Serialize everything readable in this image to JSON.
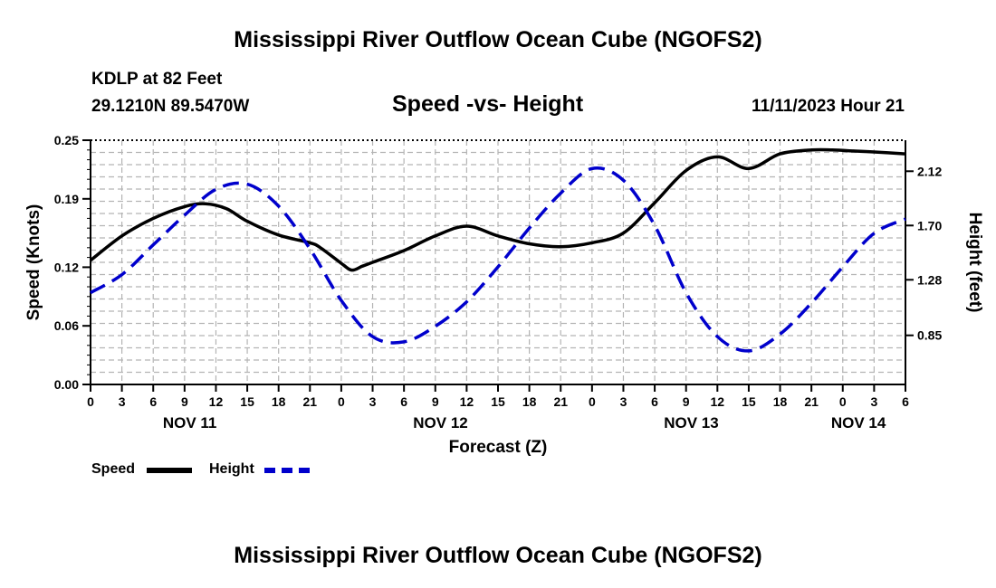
{
  "header": {
    "title": "Mississippi River Outflow Ocean Cube (NGOFS2)",
    "station": "KDLP at 82 Feet",
    "coords": "29.1210N  89.5470W",
    "subtitle": "Speed -vs- Height",
    "date": "11/11/2023 Hour 21"
  },
  "footer": {
    "title": "Mississippi River Outflow Ocean Cube (NGOFS2)"
  },
  "legend": {
    "speed_label": "Speed",
    "height_label": "Height"
  },
  "colors": {
    "speed": "#000000",
    "height": "#0000cc",
    "grid": "#b4b4b4"
  },
  "chart_data": {
    "type": "line",
    "title": "Speed -vs- Height",
    "xlabel": "Forecast (Z)",
    "ylabel": "Speed (Knots)",
    "y2label": "Height (feet)",
    "xlim": [
      0,
      78
    ],
    "ylim": [
      0,
      0.25
    ],
    "y2lim": [
      0.47,
      2.36
    ],
    "x_ticks": [
      0,
      3,
      6,
      9,
      12,
      15,
      18,
      21,
      24,
      27,
      30,
      33,
      36,
      39,
      42,
      45,
      48,
      51,
      54,
      57,
      60,
      63,
      66,
      69,
      72,
      75,
      78
    ],
    "x_tick_labels": [
      "0",
      "3",
      "6",
      "9",
      "12",
      "15",
      "18",
      "21",
      "0",
      "3",
      "6",
      "9",
      "12",
      "15",
      "18",
      "21",
      "0",
      "3",
      "6",
      "9",
      "12",
      "15",
      "18",
      "21",
      "0",
      "3",
      "6"
    ],
    "day_labels": [
      {
        "x": 9.5,
        "label": "NOV 11"
      },
      {
        "x": 33.5,
        "label": "NOV 12"
      },
      {
        "x": 57.5,
        "label": "NOV 13"
      },
      {
        "x": 73.5,
        "label": "NOV 14"
      }
    ],
    "y_ticks": [
      0,
      0.06,
      0.12,
      0.19,
      0.25
    ],
    "y_tick_labels": [
      "0.00",
      "0.06",
      "0.12",
      "0.19",
      "0.25"
    ],
    "y2_ticks": [
      0.85,
      1.28,
      1.7,
      2.12
    ],
    "y2_tick_labels": [
      "0.85",
      "1.28",
      "1.70",
      "2.12"
    ],
    "grid": true,
    "series": [
      {
        "name": "Speed",
        "axis": "left",
        "style": "solid",
        "x": [
          0,
          3,
          6,
          9,
          11,
          13,
          15,
          18,
          21,
          22,
          24,
          25,
          26,
          27,
          30,
          33,
          36,
          39,
          42,
          45,
          48,
          51,
          54,
          57,
          60,
          63,
          66,
          69,
          71,
          73,
          75,
          78
        ],
        "y": [
          0.127,
          0.152,
          0.17,
          0.182,
          0.185,
          0.18,
          0.167,
          0.153,
          0.145,
          0.14,
          0.124,
          0.117,
          0.121,
          0.125,
          0.137,
          0.152,
          0.162,
          0.152,
          0.144,
          0.141,
          0.145,
          0.155,
          0.186,
          0.219,
          0.233,
          0.221,
          0.236,
          0.24,
          0.24,
          0.239,
          0.238,
          0.236
        ]
      },
      {
        "name": "Height",
        "axis": "right",
        "style": "dashed",
        "x": [
          0,
          3,
          6,
          9,
          12,
          15,
          18,
          21,
          24,
          27,
          30,
          33,
          36,
          39,
          42,
          45,
          48,
          51,
          54,
          57,
          60,
          63,
          66,
          69,
          72,
          75,
          78
        ],
        "y": [
          1.18,
          1.32,
          1.55,
          1.78,
          1.98,
          2.02,
          1.85,
          1.52,
          1.12,
          0.84,
          0.8,
          0.92,
          1.11,
          1.38,
          1.68,
          1.95,
          2.14,
          2.05,
          1.7,
          1.18,
          0.84,
          0.73,
          0.86,
          1.1,
          1.38,
          1.64,
          1.75
        ]
      }
    ]
  }
}
